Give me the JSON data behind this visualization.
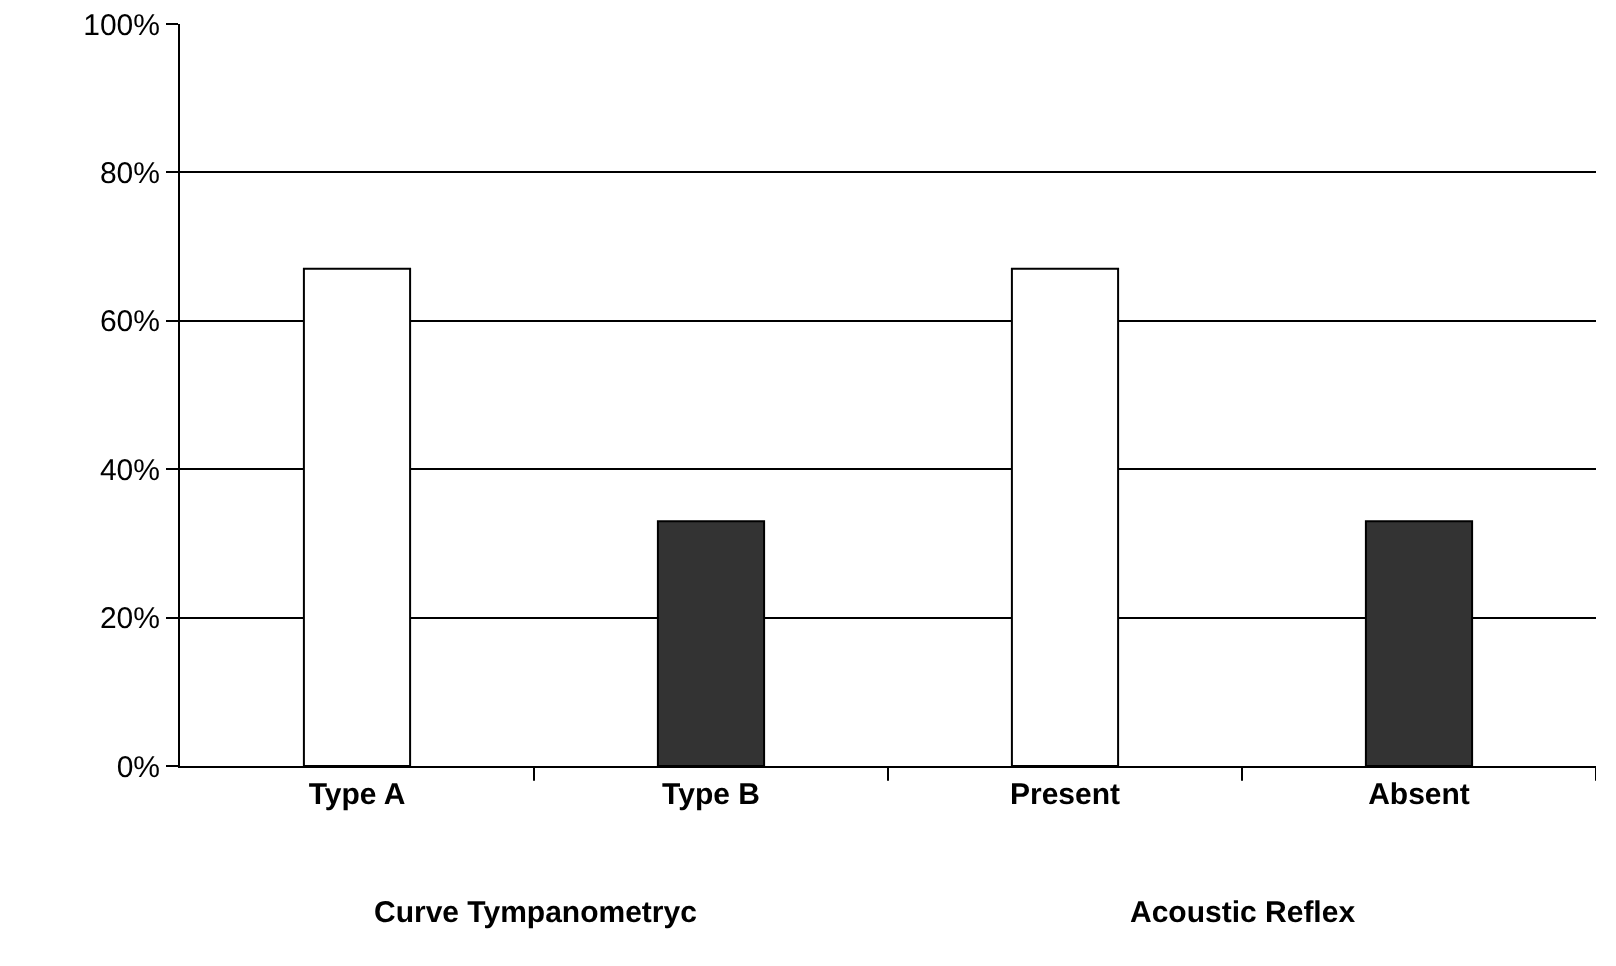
{
  "chart_data": {
    "type": "bar",
    "categories": [
      "Type A",
      "Type B",
      "Present",
      "Absent"
    ],
    "values": [
      67,
      33,
      67,
      33
    ],
    "colors": [
      "#ffffff",
      "#333333",
      "#ffffff",
      "#333333"
    ],
    "ylim": [
      0,
      100
    ],
    "yticks": [
      {
        "value": 0,
        "label": "0%"
      },
      {
        "value": 20,
        "label": "20%"
      },
      {
        "value": 40,
        "label": "40%"
      },
      {
        "value": 60,
        "label": "60%"
      },
      {
        "value": 80,
        "label": "80%"
      },
      {
        "value": 100,
        "label": "100%"
      }
    ],
    "grid": "y",
    "annotations": [
      "Curve Tympanometryc",
      "Acoustic Reflex"
    ]
  }
}
